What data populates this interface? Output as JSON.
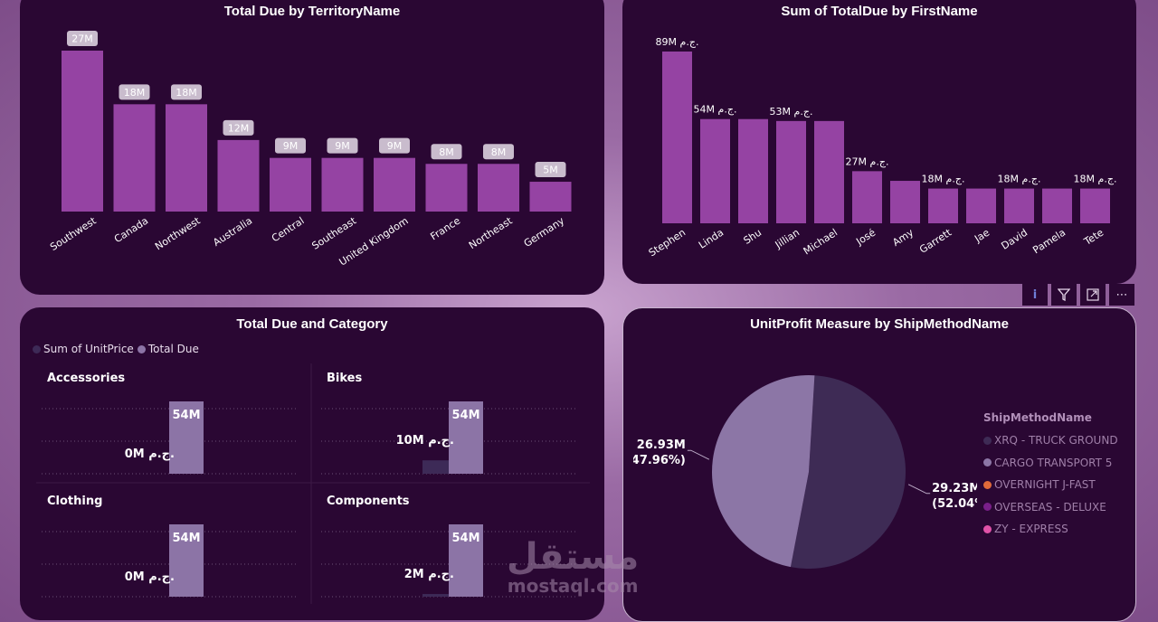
{
  "chart_data": [
    {
      "type": "bar",
      "title": "Total Due by TerritoryName",
      "categories": [
        "Southwest",
        "Canada",
        "Northwest",
        "Australia",
        "Central",
        "Southeast",
        "United Kingdom",
        "France",
        "Northeast",
        "Germany"
      ],
      "values": [
        27,
        18,
        18,
        12,
        9,
        9,
        9,
        8,
        8,
        5
      ],
      "labels": [
        "27M",
        "18M",
        "18M",
        "12M",
        "9M",
        "9M",
        "9M",
        "8M",
        "8M",
        "5M"
      ],
      "unit": "M",
      "color": "#9543a3"
    },
    {
      "type": "bar",
      "title": "Sum of TotalDue by FirstName",
      "categories": [
        "Stephen",
        "Linda",
        "Shu",
        "Jillian",
        "Michael",
        "José",
        "Amy",
        "Garrett",
        "Jae",
        "David",
        "Pamela",
        "Tete"
      ],
      "values": [
        89,
        54,
        54,
        53,
        53,
        27,
        22,
        18,
        18,
        18,
        18,
        18
      ],
      "labels": [
        "89M ج.م.",
        "54M ج.م.",
        "",
        "53M ج.م.",
        "",
        "27M ج.م.",
        "",
        "18M ج.م.",
        "",
        "18M ج.م.",
        "",
        "18M ج.م."
      ],
      "unit": "M",
      "color": "#9543a3"
    },
    {
      "type": "bar",
      "title": "Total Due and Category",
      "legend": [
        {
          "name": "Sum of UnitPrice",
          "color": "#3d2a57"
        },
        {
          "name": "Total Due",
          "color": "#8c74a6"
        }
      ],
      "panels": [
        {
          "category": "Accessories",
          "unitprice": 0,
          "totaldue": 54,
          "unitprice_label": "0M ج.م.",
          "totaldue_label": "54M"
        },
        {
          "category": "Bikes",
          "unitprice": 10,
          "totaldue": 54,
          "unitprice_label": "10M ج.م.",
          "totaldue_label": "54M"
        },
        {
          "category": "Clothing",
          "unitprice": 0,
          "totaldue": 54,
          "unitprice_label": "0M ج.م.",
          "totaldue_label": "54M"
        },
        {
          "category": "Components",
          "unitprice": 2,
          "totaldue": 54,
          "unitprice_label": "2M ج.م.",
          "totaldue_label": "54M"
        }
      ]
    },
    {
      "type": "pie",
      "title": "UnitProfit Measure by ShipMethodName",
      "legend_title": "ShipMethodName",
      "slices": [
        {
          "name": "XRQ - TRUCK GROUND",
          "value": 29.23,
          "label": "29.23M",
          "pct": "(52.04%)",
          "color": "#3e2b55"
        },
        {
          "name": "CARGO TRANSPORT 5",
          "value": 26.93,
          "label": "26.93M",
          "pct": "(47.96%)",
          "color": "#8c76a6"
        },
        {
          "name": "OVERNIGHT J-FAST",
          "value": 0,
          "label": "",
          "pct": "",
          "color": "#e06a3a"
        },
        {
          "name": "OVERSEAS - DELUXE",
          "value": 0,
          "label": "",
          "pct": "",
          "color": "#7a1f8a"
        },
        {
          "name": "ZY - EXPRESS",
          "value": 0,
          "label": "",
          "pct": "",
          "color": "#e052a8"
        }
      ]
    }
  ],
  "watermark": {
    "arabic": "مستقل",
    "latin": "mostaql.com"
  },
  "toolbar": {
    "info": "i",
    "filter": "⏷",
    "focus": "⤢",
    "more": "⋯"
  }
}
